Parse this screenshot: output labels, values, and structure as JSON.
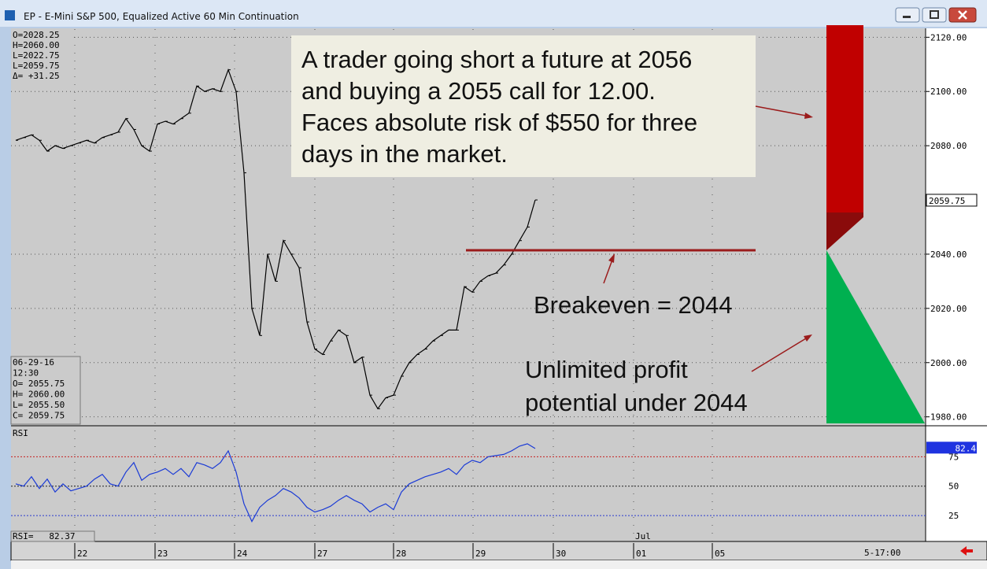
{
  "window": {
    "title": "EP - E-Mini S&P 500, Equalized Active 60 Min Continuation"
  },
  "chart_data": {
    "type": "line",
    "xlim": [
      -0.3,
      115.5
    ],
    "xticks": [
      {
        "value": 7.5,
        "label": "22"
      },
      {
        "value": 17.7,
        "label": "23"
      },
      {
        "value": 27.8,
        "label": "24"
      },
      {
        "value": 38,
        "label": "27"
      },
      {
        "value": 48,
        "label": "28"
      },
      {
        "value": 58.1,
        "label": "29"
      },
      {
        "value": 68.3,
        "label": "30"
      },
      {
        "value": 78.5,
        "label": "01"
      },
      {
        "value": 88.5,
        "label": "05"
      }
    ],
    "month_label": "Jul",
    "time_label": "5-17:00",
    "price": {
      "ylim": [
        1977,
        2123
      ],
      "yticks": [
        {
          "value": 1980,
          "label": "1980.00"
        },
        {
          "value": 2000,
          "label": "2000.00"
        },
        {
          "value": 2020,
          "label": "2020.00"
        },
        {
          "value": 2040,
          "label": "2040.00"
        },
        {
          "value": 2080,
          "label": "2080.00"
        },
        {
          "value": 2100,
          "label": "2100.00"
        },
        {
          "value": 2120,
          "label": "2120.00"
        }
      ],
      "last": 2059.75,
      "color": "#000000",
      "values": [
        2082,
        2083,
        2084,
        2082,
        2078,
        2080,
        2079,
        2080,
        2081,
        2082,
        2081,
        2083,
        2084,
        2085,
        2090,
        2086,
        2080,
        2078,
        2088,
        2089,
        2088,
        2090,
        2092,
        2102,
        2100,
        2101,
        2100,
        2108,
        2100,
        2070,
        2020,
        2010,
        2040,
        2030,
        2045,
        2040,
        2035,
        2015,
        2005,
        2003,
        2008,
        2012,
        2010,
        2000,
        2002,
        1988,
        1983,
        1987,
        1988,
        1995,
        2000,
        2003,
        2005,
        2008,
        2010,
        2012,
        2012,
        2028,
        2026,
        2030,
        2032,
        2033,
        2036,
        2040,
        2045,
        2050,
        2060
      ],
      "readout_top": [
        "O=2028.25",
        "H=2060.00",
        "L=2022.75",
        "L=2059.75",
        "Δ= +31.25"
      ],
      "readout_bottom": [
        "06-29-16",
        "12:30",
        "O= 2055.75",
        "H= 2060.00",
        "L= 2055.50",
        "C= 2059.75"
      ]
    },
    "rsi": {
      "name": "RSI",
      "ylim": [
        3,
        100
      ],
      "yticks": [
        25,
        50,
        75
      ],
      "last": 82.4,
      "readout": "RSI=   82.37",
      "color": "#1a3ad6",
      "values": [
        52,
        50,
        58,
        48,
        56,
        45,
        52,
        46,
        48,
        50,
        56,
        60,
        52,
        50,
        62,
        70,
        55,
        60,
        62,
        65,
        60,
        65,
        58,
        70,
        68,
        65,
        70,
        80,
        62,
        35,
        20,
        32,
        38,
        42,
        48,
        45,
        40,
        32,
        28,
        30,
        33,
        38,
        42,
        38,
        35,
        28,
        32,
        35,
        30,
        45,
        52,
        55,
        58,
        60,
        62,
        65,
        60,
        68,
        72,
        70,
        75,
        76,
        77,
        80,
        84,
        86,
        82
      ]
    }
  },
  "annotations": {
    "text_box": [
      "A trader going short a future at 2056",
      "and buying a 2055 call for 12.00.",
      "Faces absolute risk of $550 for three",
      "days in the market."
    ],
    "breakeven": "Breakeven = 2044",
    "profit": [
      "Unlimited profit",
      "potential under 2044"
    ]
  }
}
